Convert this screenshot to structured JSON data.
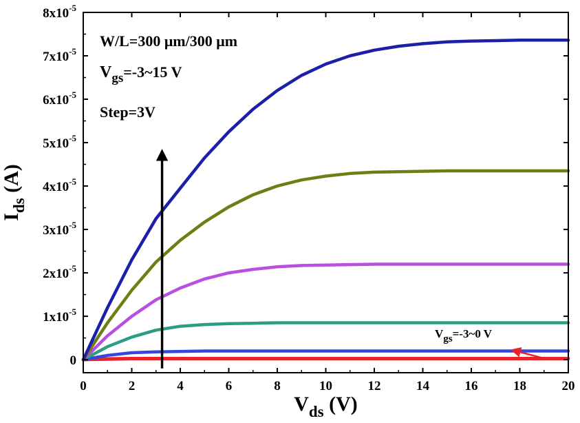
{
  "chart_data": {
    "type": "line",
    "xlabel": {
      "main": "V",
      "sub": "ds",
      "tail": " (V)"
    },
    "ylabel": {
      "main": "I",
      "sub": "ds",
      "tail": " (A)"
    },
    "xlim": [
      0,
      20
    ],
    "ylim": [
      -0.3,
      8
    ],
    "x_ticks": [
      0,
      2,
      4,
      6,
      8,
      10,
      12,
      14,
      16,
      18,
      20
    ],
    "y_ticks": [
      {
        "value": 0,
        "mant": "0",
        "exp": ""
      },
      {
        "value": 1,
        "mant": "1x10",
        "exp": "-5"
      },
      {
        "value": 2,
        "mant": "2x10",
        "exp": "-5"
      },
      {
        "value": 3,
        "mant": "3x10",
        "exp": "-5"
      },
      {
        "value": 4,
        "mant": "4x10",
        "exp": "-5"
      },
      {
        "value": 5,
        "mant": "5x10",
        "exp": "-5"
      },
      {
        "value": 6,
        "mant": "6x10",
        "exp": "-5"
      },
      {
        "value": 7,
        "mant": "7x10",
        "exp": "-5"
      },
      {
        "value": 8,
        "mant": "8x10",
        "exp": "-5"
      }
    ],
    "y_unit_note": "y values in units of 1x10^-5 A",
    "grid": false,
    "annotations": {
      "wl": "W/L=300 μm/300 μm",
      "vgs_main": "V",
      "vgs_sub": "gs",
      "vgs_range": "=-3~15 V",
      "step": "Step=3V",
      "low_main": "V",
      "low_sub": "gs",
      "low_range": "=-3~0 V"
    },
    "series": [
      {
        "color": "#e8242a",
        "x": [
          0,
          1,
          2,
          3,
          4,
          5,
          6,
          7,
          8,
          9,
          10,
          11,
          12,
          13,
          14,
          15,
          16,
          17,
          18,
          19,
          20
        ],
        "values": [
          0,
          0.01,
          0.02,
          0.02,
          0.02,
          0.02,
          0.02,
          0.02,
          0.02,
          0.02,
          0.02,
          0.02,
          0.02,
          0.02,
          0.02,
          0.02,
          0.02,
          0.02,
          0.02,
          0.02,
          0.02
        ]
      },
      {
        "color": "#e8242a",
        "x": [
          0,
          1,
          2,
          3,
          4,
          5,
          6,
          7,
          8,
          9,
          10,
          11,
          12,
          13,
          14,
          15,
          16,
          17,
          18,
          19,
          20
        ],
        "values": [
          0,
          0.02,
          0.03,
          0.03,
          0.03,
          0.03,
          0.03,
          0.03,
          0.03,
          0.03,
          0.03,
          0.03,
          0.03,
          0.03,
          0.03,
          0.03,
          0.03,
          0.03,
          0.03,
          0.03,
          0.03
        ]
      },
      {
        "color": "#3346e0",
        "x": [
          0,
          1,
          2,
          3,
          4,
          5,
          6,
          7,
          8,
          9,
          10,
          11,
          12,
          13,
          14,
          15,
          16,
          17,
          18,
          19,
          20
        ],
        "values": [
          0,
          0.1,
          0.16,
          0.18,
          0.19,
          0.2,
          0.2,
          0.2,
          0.2,
          0.2,
          0.2,
          0.2,
          0.2,
          0.2,
          0.2,
          0.2,
          0.2,
          0.2,
          0.2,
          0.2,
          0.2
        ]
      },
      {
        "color": "#2b9e82",
        "x": [
          0,
          1,
          2,
          3,
          4,
          5,
          6,
          7,
          8,
          9,
          10,
          11,
          12,
          13,
          14,
          15,
          16,
          17,
          18,
          19,
          20
        ],
        "values": [
          0,
          0.3,
          0.52,
          0.68,
          0.77,
          0.81,
          0.83,
          0.84,
          0.85,
          0.85,
          0.85,
          0.85,
          0.85,
          0.85,
          0.85,
          0.85,
          0.85,
          0.85,
          0.85,
          0.85,
          0.85
        ]
      },
      {
        "color": "#b84fe0",
        "x": [
          0,
          1,
          2,
          3,
          4,
          5,
          6,
          7,
          8,
          9,
          10,
          11,
          12,
          13,
          14,
          15,
          16,
          17,
          18,
          19,
          20
        ],
        "values": [
          0,
          0.55,
          1.0,
          1.38,
          1.65,
          1.86,
          2.0,
          2.08,
          2.14,
          2.17,
          2.18,
          2.19,
          2.2,
          2.2,
          2.2,
          2.2,
          2.2,
          2.2,
          2.2,
          2.2,
          2.2
        ]
      },
      {
        "color": "#6e7d14",
        "x": [
          0,
          1,
          2,
          3,
          4,
          5,
          6,
          7,
          8,
          9,
          10,
          11,
          12,
          13,
          14,
          15,
          16,
          17,
          18,
          19,
          20
        ],
        "values": [
          0,
          0.85,
          1.6,
          2.25,
          2.75,
          3.17,
          3.52,
          3.8,
          4.0,
          4.14,
          4.23,
          4.29,
          4.32,
          4.33,
          4.34,
          4.35,
          4.35,
          4.35,
          4.35,
          4.35,
          4.35
        ]
      },
      {
        "color": "#1c1fa8",
        "x": [
          0,
          1,
          2,
          3,
          4,
          5,
          6,
          7,
          8,
          9,
          10,
          11,
          12,
          13,
          14,
          15,
          16,
          17,
          18,
          19,
          20
        ],
        "values": [
          0,
          1.2,
          2.3,
          3.25,
          3.95,
          4.65,
          5.25,
          5.77,
          6.2,
          6.55,
          6.81,
          7.0,
          7.13,
          7.22,
          7.28,
          7.32,
          7.34,
          7.35,
          7.36,
          7.36,
          7.36
        ]
      }
    ],
    "arrows": [
      {
        "label": "increasing-vgs-arrow",
        "color": "#000000",
        "from": [
          3.25,
          -0.2
        ],
        "to": [
          3.25,
          4.8
        ]
      },
      {
        "label": "low-vgs-pointer",
        "color": "#e8242a",
        "from": [
          19.2,
          0.0
        ],
        "to": [
          17.7,
          0.22
        ]
      }
    ]
  }
}
